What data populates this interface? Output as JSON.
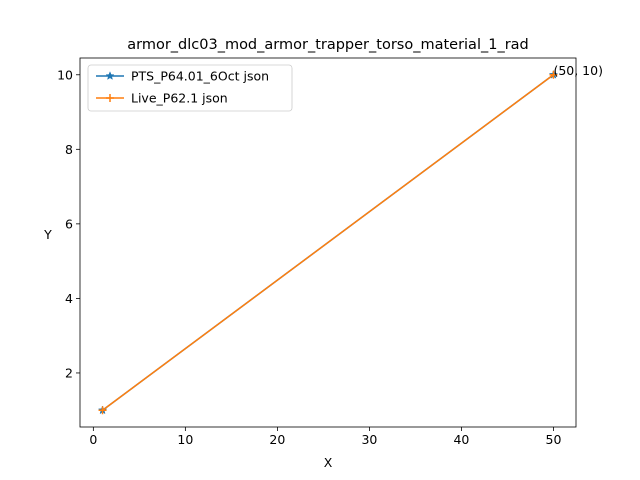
{
  "chart_data": {
    "type": "line",
    "title": "armor_dlc03_mod_armor_trapper_torso_material_1_rad",
    "xlabel": "X",
    "ylabel": "Y",
    "xlim": [
      -1.45,
      52.45
    ],
    "ylim": [
      0.55,
      10.45
    ],
    "xticks": [
      0,
      10,
      20,
      30,
      40,
      50
    ],
    "yticks": [
      2,
      4,
      6,
      8,
      10
    ],
    "grid": false,
    "legend_position": "upper-left",
    "series": [
      {
        "name": "PTS_P64.01_6Oct json",
        "color": "#1f77b4",
        "marker": "star",
        "x": [
          1,
          50
        ],
        "y": [
          1,
          10
        ]
      },
      {
        "name": "Live_P62.1 json",
        "color": "#ff7f0e",
        "marker": "plus",
        "x": [
          1,
          50
        ],
        "y": [
          1,
          10
        ]
      }
    ],
    "annotations": [
      {
        "text": "(50, 10)",
        "x": 50,
        "y": 10
      }
    ]
  }
}
